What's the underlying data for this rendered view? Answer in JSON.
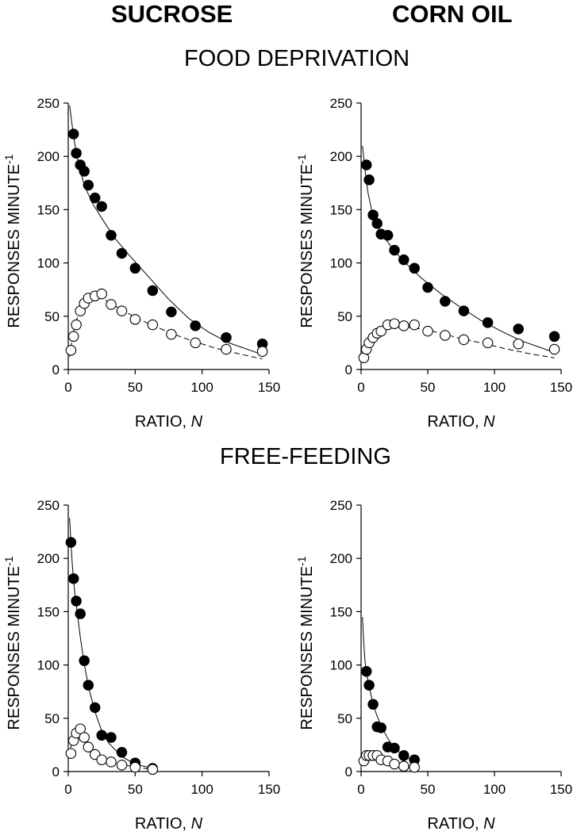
{
  "headings": {
    "col_left": "SUCROSE",
    "col_right": "CORN OIL",
    "row_top": "FOOD DEPRIVATION",
    "row_bottom": "FREE-FEEDING"
  },
  "chart_data": [
    {
      "type": "scatter",
      "panel": "food-deprivation-sucrose",
      "xlabel": "RATIO, N",
      "ylabel": "RESPONSES MINUTE-1",
      "xlim": [
        0,
        150
      ],
      "ylim": [
        0,
        250
      ],
      "xticks": [
        0,
        50,
        100,
        150
      ],
      "yticks": [
        0,
        50,
        100,
        150,
        200,
        250
      ],
      "series": [
        {
          "marker": "filled",
          "x": [
            4,
            6,
            9,
            12,
            15,
            20,
            25,
            32,
            40,
            50,
            63,
            77,
            95,
            118,
            145
          ],
          "y": [
            221,
            203,
            192,
            186,
            173,
            161,
            153,
            126,
            109,
            95,
            74,
            54,
            41,
            30,
            24
          ]
        },
        {
          "marker": "open",
          "x": [
            2,
            4,
            6,
            9,
            12,
            15,
            20,
            25,
            32,
            40,
            50,
            63,
            77,
            95,
            118,
            145
          ],
          "y": [
            18,
            31,
            42,
            55,
            62,
            67,
            69,
            71,
            61,
            55,
            47,
            42,
            33,
            25,
            19,
            17
          ]
        }
      ],
      "fits": [
        {
          "style": "solid",
          "x": [
            1,
            3,
            5,
            8,
            12,
            18,
            25,
            35,
            45,
            60,
            75,
            90,
            105,
            120,
            145
          ],
          "y": [
            248,
            228,
            211,
            191,
            173,
            156,
            142,
            123,
            108,
            87,
            66,
            48,
            35,
            25,
            14
          ]
        },
        {
          "style": "dashed",
          "x": [
            1,
            3,
            5,
            8,
            12,
            16,
            20,
            25,
            32,
            40,
            50,
            60,
            75,
            90,
            110,
            130,
            145
          ],
          "y": [
            12,
            30,
            42,
            53,
            61,
            65,
            67,
            67,
            62,
            56,
            49,
            43,
            35,
            28,
            20,
            14,
            10
          ]
        }
      ]
    },
    {
      "type": "scatter",
      "panel": "food-deprivation-corn-oil",
      "xlabel": "RATIO, N",
      "ylabel": "RESPONSES MINUTE-1",
      "xlim": [
        0,
        150
      ],
      "ylim": [
        0,
        250
      ],
      "xticks": [
        0,
        50,
        100,
        150
      ],
      "yticks": [
        0,
        50,
        100,
        150,
        200,
        250
      ],
      "series": [
        {
          "marker": "filled",
          "x": [
            4,
            6,
            9,
            12,
            15,
            20,
            25,
            32,
            40,
            50,
            63,
            77,
            95,
            118,
            145
          ],
          "y": [
            192,
            178,
            145,
            137,
            127,
            126,
            112,
            103,
            95,
            77,
            64,
            55,
            44,
            38,
            31
          ]
        },
        {
          "marker": "open",
          "x": [
            2,
            4,
            6,
            9,
            12,
            15,
            20,
            25,
            32,
            40,
            50,
            63,
            77,
            95,
            118,
            145
          ],
          "y": [
            11,
            19,
            25,
            30,
            34,
            36,
            42,
            43,
            41,
            42,
            36,
            32,
            28,
            25,
            24,
            19
          ]
        }
      ],
      "fits": [
        {
          "style": "solid",
          "x": [
            1,
            3,
            5,
            8,
            12,
            18,
            25,
            35,
            45,
            60,
            75,
            90,
            105,
            120,
            145
          ],
          "y": [
            210,
            187,
            167,
            149,
            135,
            123,
            111,
            98,
            86,
            71,
            58,
            46,
            36,
            27,
            16
          ]
        },
        {
          "style": "dashed",
          "x": [
            1,
            3,
            5,
            8,
            12,
            16,
            20,
            25,
            32,
            40,
            50,
            60,
            75,
            90,
            110,
            130,
            145
          ],
          "y": [
            8,
            16,
            22,
            28,
            33,
            36,
            38,
            40,
            40,
            39,
            37,
            34,
            29,
            25,
            19,
            14,
            11
          ]
        }
      ]
    },
    {
      "type": "scatter",
      "panel": "free-feeding-sucrose",
      "xlabel": "RATIO, N",
      "ylabel": "RESPONSES MINUTE-1",
      "xlim": [
        0,
        150
      ],
      "ylim": [
        0,
        250
      ],
      "xticks": [
        0,
        50,
        100,
        150
      ],
      "yticks": [
        0,
        50,
        100,
        150,
        200,
        250
      ],
      "series": [
        {
          "marker": "filled",
          "x": [
            2,
            4,
            6,
            9,
            12,
            15,
            20,
            25,
            32,
            40,
            50,
            63
          ],
          "y": [
            215,
            181,
            160,
            148,
            104,
            81,
            60,
            34,
            32,
            18,
            8,
            3
          ]
        },
        {
          "marker": "open",
          "x": [
            2,
            4,
            6,
            9,
            12,
            15,
            20,
            25,
            32,
            40,
            50,
            63
          ],
          "y": [
            17,
            29,
            36,
            40,
            32,
            23,
            16,
            11,
            9,
            6,
            4,
            2
          ]
        }
      ],
      "fits": [
        {
          "style": "solid",
          "x": [
            1,
            2,
            3,
            5,
            7,
            9,
            12,
            15,
            20,
            25,
            30,
            40,
            50,
            63
          ],
          "y": [
            238,
            215,
            194,
            166,
            146,
            126,
            101,
            80,
            56,
            38,
            27,
            14,
            7,
            3
          ]
        },
        {
          "style": "dashed",
          "x": [
            1,
            2,
            4,
            6,
            8,
            10,
            12,
            15,
            20,
            25,
            32,
            40,
            50,
            63
          ],
          "y": [
            14,
            24,
            32,
            36,
            37,
            35,
            31,
            26,
            19,
            14,
            10,
            7,
            4,
            2
          ]
        }
      ]
    },
    {
      "type": "scatter",
      "panel": "free-feeding-corn-oil",
      "xlabel": "RATIO, N",
      "ylabel": "RESPONSES MINUTE-1",
      "xlim": [
        0,
        150
      ],
      "ylim": [
        0,
        250
      ],
      "xticks": [
        0,
        50,
        100,
        150
      ],
      "yticks": [
        0,
        50,
        100,
        150,
        200,
        250
      ],
      "series": [
        {
          "marker": "filled",
          "x": [
            4,
            6,
            9,
            12,
            15,
            20,
            25,
            32,
            40
          ],
          "y": [
            94,
            81,
            63,
            42,
            41,
            23,
            22,
            15,
            11
          ]
        },
        {
          "marker": "open",
          "x": [
            2,
            4,
            6,
            9,
            12,
            15,
            20,
            25,
            32,
            40
          ],
          "y": [
            10,
            15,
            15,
            15,
            15,
            11,
            10,
            7,
            5,
            4
          ]
        }
      ],
      "fits": [
        {
          "style": "solid",
          "x": [
            1,
            2,
            3,
            5,
            7,
            9,
            12,
            15,
            20,
            25,
            32,
            40
          ],
          "y": [
            145,
            120,
            103,
            86,
            74,
            63,
            52,
            43,
            31,
            22,
            15,
            9
          ]
        },
        {
          "style": "dashed",
          "x": [
            1,
            2,
            4,
            6,
            9,
            12,
            15,
            20,
            25,
            32,
            40
          ],
          "y": [
            9,
            12,
            14,
            15,
            15,
            14,
            12,
            10,
            8,
            6,
            4
          ]
        }
      ]
    }
  ]
}
